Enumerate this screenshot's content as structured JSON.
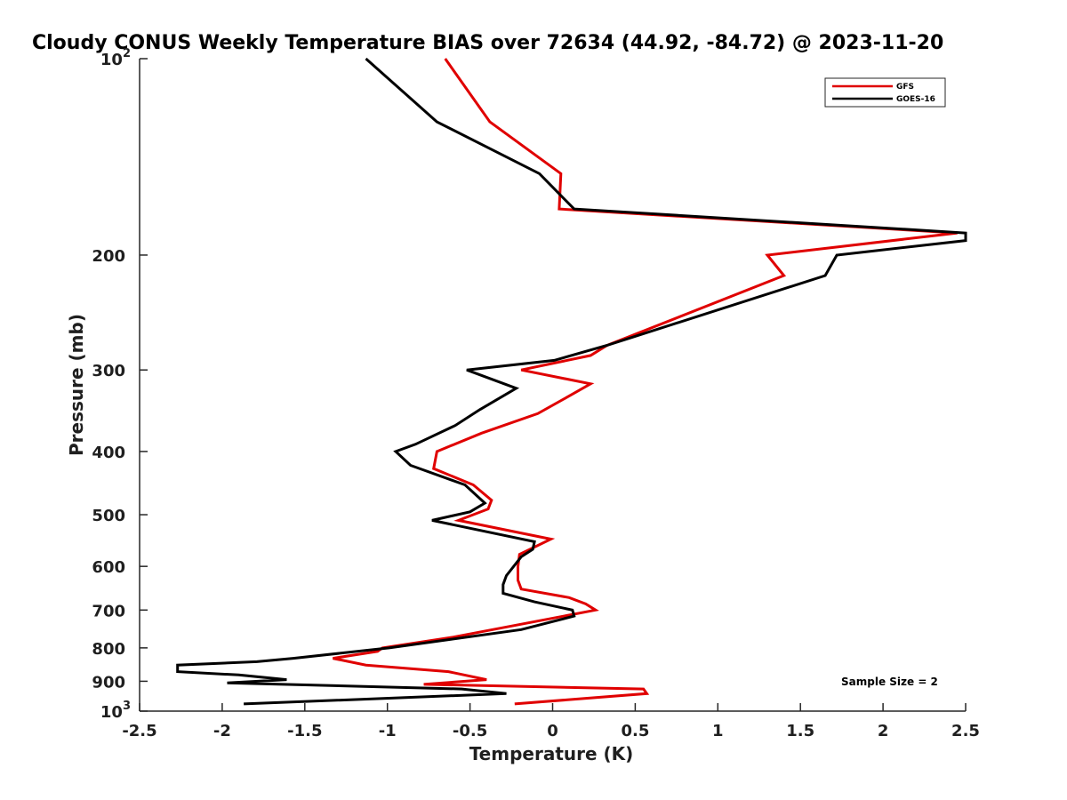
{
  "chart_data": {
    "type": "line",
    "title": "Cloudy CONUS Weekly Temperature BIAS over 72634 (44.92, -84.72) @ 2023-11-20",
    "xlabel": "Temperature (K)",
    "ylabel": "Pressure (mb)",
    "xlim": [
      -2.5,
      2.5
    ],
    "ylim": [
      100,
      1000
    ],
    "y_scale": "log",
    "y_reversed": true,
    "x_ticks": [
      "-2.5",
      "-2",
      "-1.5",
      "-1",
      "-0.5",
      "0",
      "0.5",
      "1",
      "1.5",
      "2",
      "2.5"
    ],
    "y_ticks": [
      {
        "base": "10",
        "exp": "2",
        "value": 100
      },
      {
        "label": "200",
        "value": 200
      },
      {
        "label": "300",
        "value": 300
      },
      {
        "label": "400",
        "value": 400
      },
      {
        "label": "500",
        "value": 500
      },
      {
        "label": "600",
        "value": 600
      },
      {
        "label": "700",
        "value": 700
      },
      {
        "label": "800",
        "value": 800
      },
      {
        "label": "900",
        "value": 900
      },
      {
        "base": "10",
        "exp": "3",
        "value": 1000
      }
    ],
    "grid": false,
    "legend_position": "top-right",
    "annotation": "Sample Size = 2",
    "series": [
      {
        "name": "GFS",
        "color": "#e00000",
        "points": [
          [
            -0.65,
            100
          ],
          [
            -0.38,
            125
          ],
          [
            0.05,
            150
          ],
          [
            0.04,
            170
          ],
          [
            2.45,
            185
          ],
          [
            1.3,
            200
          ],
          [
            1.4,
            215
          ],
          [
            0.33,
            275
          ],
          [
            0.23,
            285
          ],
          [
            -0.19,
            300
          ],
          [
            0.23,
            315
          ],
          [
            0.09,
            330
          ],
          [
            -0.09,
            350
          ],
          [
            -0.43,
            375
          ],
          [
            -0.7,
            400
          ],
          [
            -0.72,
            425
          ],
          [
            -0.48,
            450
          ],
          [
            -0.37,
            475
          ],
          [
            -0.39,
            490
          ],
          [
            -0.57,
            510
          ],
          [
            -0.01,
            545
          ],
          [
            -0.2,
            575
          ],
          [
            -0.21,
            600
          ],
          [
            -0.21,
            630
          ],
          [
            -0.19,
            650
          ],
          [
            0.1,
            670
          ],
          [
            0.2,
            685
          ],
          [
            0.26,
            700
          ],
          [
            -0.6,
            770
          ],
          [
            -1.03,
            800
          ],
          [
            -1.06,
            810
          ],
          [
            -1.33,
            830
          ],
          [
            -1.13,
            850
          ],
          [
            -0.63,
            870
          ],
          [
            -0.4,
            895
          ],
          [
            -0.78,
            910
          ],
          [
            0.55,
            925
          ],
          [
            0.57,
            940
          ],
          [
            -0.23,
            975
          ]
        ]
      },
      {
        "name": "GOES-16",
        "color": "#000000",
        "points": [
          [
            -1.13,
            100
          ],
          [
            -0.7,
            125
          ],
          [
            -0.08,
            150
          ],
          [
            0.13,
            170
          ],
          [
            2.5,
            185
          ],
          [
            2.5,
            190
          ],
          [
            1.72,
            200
          ],
          [
            1.65,
            215
          ],
          [
            0.33,
            275
          ],
          [
            0.01,
            290
          ],
          [
            -0.52,
            300
          ],
          [
            -0.22,
            320
          ],
          [
            -0.44,
            345
          ],
          [
            -0.59,
            365
          ],
          [
            -0.83,
            390
          ],
          [
            -0.95,
            400
          ],
          [
            -0.86,
            420
          ],
          [
            -0.53,
            450
          ],
          [
            -0.41,
            480
          ],
          [
            -0.5,
            495
          ],
          [
            -0.73,
            510
          ],
          [
            -0.11,
            550
          ],
          [
            -0.12,
            565
          ],
          [
            -0.19,
            580
          ],
          [
            -0.28,
            620
          ],
          [
            -0.3,
            640
          ],
          [
            -0.3,
            660
          ],
          [
            -0.11,
            680
          ],
          [
            0.12,
            700
          ],
          [
            0.13,
            715
          ],
          [
            -0.19,
            750
          ],
          [
            -0.99,
            800
          ],
          [
            -1.57,
            830
          ],
          [
            -1.79,
            840
          ],
          [
            -2.27,
            850
          ],
          [
            -2.27,
            870
          ],
          [
            -1.9,
            880
          ],
          [
            -1.61,
            895
          ],
          [
            -1.97,
            905
          ],
          [
            -0.55,
            925
          ],
          [
            -0.28,
            940
          ],
          [
            -1.87,
            975
          ]
        ]
      }
    ]
  }
}
